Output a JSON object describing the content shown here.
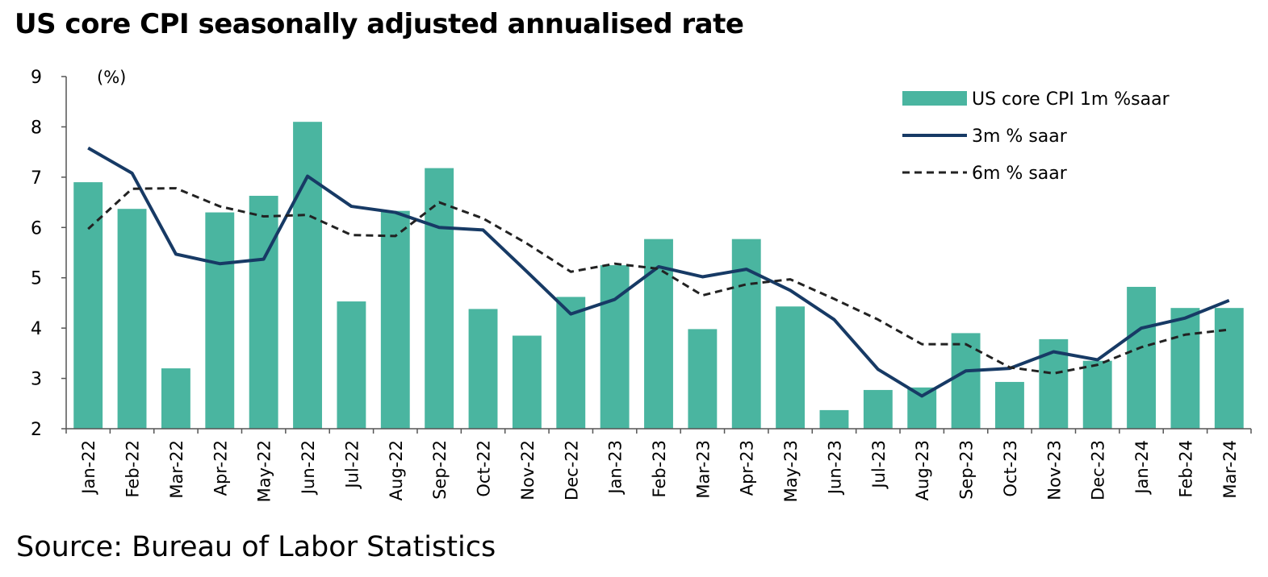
{
  "chart_data": {
    "type": "bar",
    "title": "US core CPI seasonally adjusted annualised rate",
    "ylabel": "(%)",
    "xlabel": "",
    "ylim": [
      2,
      9
    ],
    "yticks": [
      2,
      3,
      4,
      5,
      6,
      7,
      8,
      9
    ],
    "grid": false,
    "legend_position": "top-right",
    "categories": [
      "Jan-22",
      "Feb-22",
      "Mar-22",
      "Apr-22",
      "May-22",
      "Jun-22",
      "Jul-22",
      "Aug-22",
      "Sep-22",
      "Oct-22",
      "Nov-22",
      "Dec-22",
      "Jan-23",
      "Feb-23",
      "Mar-23",
      "Apr-23",
      "May-23",
      "Jun-23",
      "Jul-23",
      "Aug-23",
      "Sep-23",
      "Oct-23",
      "Nov-23",
      "Dec-23",
      "Jan-24",
      "Feb-24",
      "Mar-24"
    ],
    "series": [
      {
        "name": "US core CPI 1m %saar",
        "type": "bar",
        "color": "#4ab5a0",
        "values": [
          6.9,
          6.37,
          3.2,
          6.3,
          6.63,
          8.1,
          4.53,
          6.33,
          7.18,
          4.38,
          3.85,
          4.62,
          5.25,
          5.77,
          3.98,
          5.77,
          4.43,
          2.37,
          2.77,
          2.82,
          3.9,
          2.93,
          3.78,
          3.35,
          4.82,
          4.4,
          4.4
        ]
      },
      {
        "name": "3m % saar",
        "type": "line",
        "color": "#173a65",
        "values": [
          7.58,
          7.08,
          5.47,
          5.28,
          5.37,
          7.02,
          6.42,
          6.3,
          6.0,
          5.95,
          5.12,
          4.28,
          4.57,
          5.22,
          5.02,
          5.17,
          4.75,
          4.17,
          3.18,
          2.65,
          3.15,
          3.2,
          3.53,
          3.37,
          4.0,
          4.2,
          4.55
        ]
      },
      {
        "name": "6m % saar",
        "type": "line",
        "style": "dashed",
        "color": "#222222",
        "values": [
          5.97,
          6.77,
          6.78,
          6.42,
          6.22,
          6.25,
          5.85,
          5.83,
          6.5,
          6.18,
          5.68,
          5.12,
          5.28,
          5.18,
          4.65,
          4.87,
          4.97,
          4.58,
          4.17,
          3.68,
          3.68,
          3.22,
          3.1,
          3.27,
          3.62,
          3.87,
          3.97
        ]
      }
    ]
  },
  "source": "Source: Bureau of Labor Statistics"
}
